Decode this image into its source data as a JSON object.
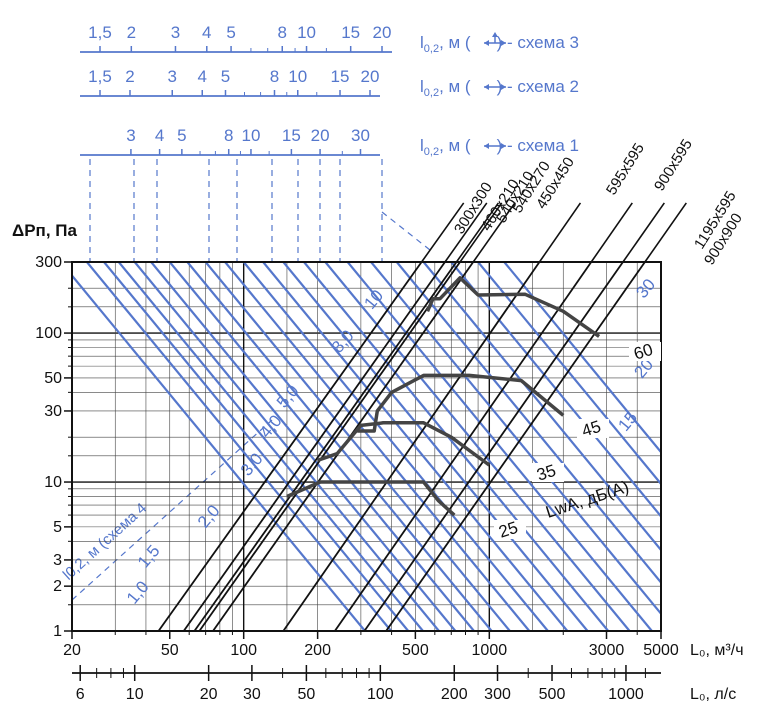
{
  "chart_data": {
    "type": "line",
    "title": "",
    "y_axis": {
      "label": "ΔPп, Па",
      "scale": "log",
      "range": [
        1,
        300
      ],
      "ticks": [
        "1",
        "2",
        "3",
        "5",
        "10",
        "30",
        "50",
        "100",
        "300"
      ]
    },
    "x_axis_m3h": {
      "label": "L₀, м³/ч",
      "scale": "log",
      "range": [
        20,
        5000
      ],
      "ticks": [
        "20",
        "50",
        "100",
        "200",
        "500",
        "1000",
        "3000",
        "5000"
      ]
    },
    "x_axis_ls": {
      "label": "L₀, л/с",
      "ticks": [
        "6",
        "10",
        "20",
        "30",
        "50",
        "100",
        "200",
        "300",
        "500",
        "1000"
      ]
    },
    "throw_scales": [
      {
        "label_main": "l",
        "label_sub": "0,2",
        "label_rest": ", м (",
        "label_end": ") - схема 3",
        "ticks": [
          "1,5",
          "2",
          "3",
          "4",
          "5",
          "8",
          "10",
          "15",
          "20"
        ]
      },
      {
        "label_main": "l",
        "label_sub": "0,2",
        "label_rest": ", м (",
        "label_end": ") - схема 2",
        "ticks": [
          "1,5",
          "2",
          "3",
          "4",
          "5",
          "8",
          "10",
          "15",
          "20"
        ]
      },
      {
        "label_main": "l",
        "label_sub": "0,2",
        "label_rest": ", м (",
        "label_end": ") - схема 1",
        "ticks": [
          "3",
          "4",
          "5",
          "8",
          "10",
          "15",
          "20",
          "30"
        ]
      }
    ],
    "scheme4_label": "l0,2, м (схема 4",
    "throw_curve_labels": [
      "1,0",
      "1,5",
      "2,0",
      "3,0",
      "4,0",
      "5,0",
      "8,0",
      "10",
      "15",
      "20",
      "30"
    ],
    "sizes": [
      "300x300",
      "460x210",
      "540x210",
      "540x270",
      "450x450",
      "595x595",
      "900x595",
      "1195x595",
      "900x900"
    ],
    "size_lines": [
      {
        "name": "300x300",
        "x_at_1Pa": 45,
        "x_at_300Pa": 530
      },
      {
        "name": "460x210",
        "x_at_1Pa": 57,
        "x_at_300Pa": 660
      },
      {
        "name": "540x210",
        "x_at_1Pa": 63,
        "x_at_300Pa": 735
      },
      {
        "name": "540x270",
        "x_at_1Pa": 66,
        "x_at_300Pa": 760
      },
      {
        "name": "450x450",
        "x_at_1Pa": 75,
        "x_at_300Pa": 860
      },
      {
        "name": "595x595",
        "x_at_1Pa": 145,
        "x_at_300Pa": 1600
      },
      {
        "name": "900x595",
        "x_at_1Pa": 235,
        "x_at_300Pa": 2600
      },
      {
        "name": "1195x595",
        "x_at_1Pa": 310,
        "x_at_300Pa": 3500
      },
      {
        "name": "900x900",
        "x_at_1Pa": 380,
        "x_at_300Pa": 4300
      }
    ],
    "noise_label": "LwA, дБ(А)",
    "noise_levels": [
      "25",
      "35",
      "45",
      "60"
    ],
    "noise_curves": [
      {
        "level": "25",
        "points": [
          [
            150,
            8
          ],
          [
            205,
            10
          ],
          [
            300,
            10
          ],
          [
            540,
            10
          ],
          [
            620,
            7.5
          ],
          [
            720,
            6
          ]
        ]
      },
      {
        "level": "35",
        "points": [
          [
            200,
            14
          ],
          [
            240,
            15.5
          ],
          [
            300,
            24
          ],
          [
            370,
            25
          ],
          [
            540,
            25
          ],
          [
            700,
            20
          ],
          [
            1000,
            13
          ]
        ]
      },
      {
        "level": "45",
        "points": [
          [
            290,
            22
          ],
          [
            340,
            22
          ],
          [
            350,
            30
          ],
          [
            400,
            40
          ],
          [
            540,
            52
          ],
          [
            830,
            52
          ],
          [
            1350,
            48
          ],
          [
            2000,
            28
          ]
        ]
      },
      {
        "level": "60",
        "points": [
          [
            560,
            140
          ],
          [
            590,
            170
          ],
          [
            630,
            170
          ],
          [
            760,
            235
          ],
          [
            900,
            180
          ],
          [
            1400,
            182
          ],
          [
            2000,
            140
          ],
          [
            2800,
            95
          ]
        ]
      }
    ]
  }
}
